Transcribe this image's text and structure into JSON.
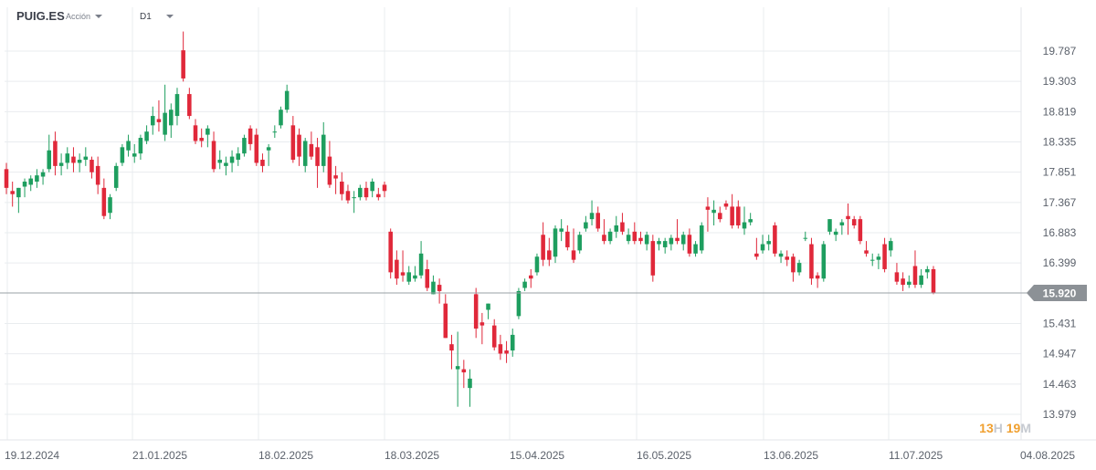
{
  "header": {
    "symbol": "PUIG.ES",
    "instrument_type": "Acción",
    "timeframe": "D1"
  },
  "countdown": {
    "hours": "13",
    "hours_unit": "H",
    "minutes": "19",
    "minutes_unit": "M"
  },
  "colors": {
    "up": "#1e9e5f",
    "down": "#e0283a",
    "price_line": "#9aa0a6",
    "price_tag": "#8c9196",
    "grid": "#e9ecef",
    "axis_text": "#5b616b"
  },
  "chart_data": {
    "type": "candlestick",
    "y_ticks": [
      "19.787",
      "19.303",
      "18.819",
      "18.335",
      "17.851",
      "17.367",
      "16.883",
      "16.399",
      "15.431",
      "14.947",
      "14.463",
      "13.979"
    ],
    "x_ticks": [
      "19.12.2024",
      "21.01.2025",
      "18.02.2025",
      "18.03.2025",
      "15.04.2025",
      "16.05.2025",
      "13.06.2025",
      "11.07.2025",
      "04.08.2025"
    ],
    "ylim": [
      13.9,
      20.4
    ],
    "current_price": 15.92,
    "current_price_label": "15.920",
    "ohlc": [
      [
        17.9,
        18.0,
        17.5,
        17.6
      ],
      [
        17.55,
        17.7,
        17.3,
        17.5
      ],
      [
        17.45,
        17.6,
        17.2,
        17.6
      ],
      [
        17.62,
        17.75,
        17.45,
        17.7
      ],
      [
        17.65,
        17.8,
        17.55,
        17.75
      ],
      [
        17.7,
        17.9,
        17.6,
        17.8
      ],
      [
        17.78,
        17.9,
        17.65,
        17.85
      ],
      [
        17.9,
        18.45,
        17.85,
        18.2
      ],
      [
        18.35,
        18.5,
        17.8,
        17.95
      ],
      [
        17.95,
        18.15,
        17.8,
        18.0
      ],
      [
        18.0,
        18.25,
        17.9,
        18.15
      ],
      [
        18.1,
        18.25,
        17.85,
        18.0
      ],
      [
        18.0,
        18.15,
        17.85,
        18.05
      ],
      [
        18.05,
        18.25,
        17.95,
        18.1
      ],
      [
        18.05,
        18.1,
        17.75,
        17.85
      ],
      [
        17.95,
        18.1,
        17.5,
        17.65
      ],
      [
        17.6,
        17.75,
        17.1,
        17.15
      ],
      [
        17.2,
        17.5,
        17.1,
        17.45
      ],
      [
        17.6,
        18.0,
        17.55,
        17.95
      ],
      [
        18.0,
        18.3,
        17.95,
        18.25
      ],
      [
        18.2,
        18.45,
        18.1,
        18.35
      ],
      [
        18.1,
        18.3,
        18.0,
        18.15
      ],
      [
        18.15,
        18.45,
        18.05,
        18.4
      ],
      [
        18.35,
        18.6,
        18.3,
        18.5
      ],
      [
        18.6,
        18.9,
        18.45,
        18.75
      ],
      [
        18.7,
        19.0,
        18.5,
        18.65
      ],
      [
        18.45,
        19.25,
        18.35,
        18.8
      ],
      [
        18.6,
        18.95,
        18.4,
        18.85
      ],
      [
        18.75,
        19.2,
        18.6,
        19.1
      ],
      [
        19.8,
        20.1,
        19.3,
        19.35
      ],
      [
        19.1,
        19.2,
        18.7,
        18.75
      ],
      [
        18.6,
        18.7,
        18.3,
        18.35
      ],
      [
        18.4,
        18.55,
        18.25,
        18.35
      ],
      [
        18.45,
        18.6,
        18.25,
        18.55
      ],
      [
        18.35,
        18.5,
        17.85,
        17.9
      ],
      [
        18.0,
        18.2,
        17.9,
        18.05
      ],
      [
        17.95,
        18.1,
        17.8,
        18.0
      ],
      [
        18.0,
        18.2,
        17.85,
        18.1
      ],
      [
        18.05,
        18.25,
        17.95,
        18.15
      ],
      [
        18.15,
        18.45,
        18.1,
        18.4
      ],
      [
        18.55,
        18.6,
        18.2,
        18.3
      ],
      [
        18.45,
        18.55,
        17.95,
        18.0
      ],
      [
        18.05,
        18.15,
        17.85,
        17.95
      ],
      [
        18.2,
        18.3,
        17.95,
        18.25
      ],
      [
        18.5,
        18.6,
        18.4,
        18.5
      ],
      [
        18.6,
        18.9,
        18.55,
        18.85
      ],
      [
        18.85,
        19.25,
        18.8,
        19.15
      ],
      [
        18.6,
        18.75,
        18.0,
        18.05
      ],
      [
        18.45,
        18.55,
        17.95,
        18.1
      ],
      [
        17.95,
        18.4,
        17.85,
        18.35
      ],
      [
        18.3,
        18.5,
        18.05,
        18.1
      ],
      [
        18.25,
        18.4,
        17.6,
        17.95
      ],
      [
        17.95,
        18.65,
        17.85,
        18.45
      ],
      [
        18.1,
        18.35,
        17.6,
        17.65
      ],
      [
        17.8,
        17.95,
        17.5,
        17.75
      ],
      [
        17.7,
        17.85,
        17.4,
        17.5
      ],
      [
        17.55,
        17.65,
        17.35,
        17.4
      ],
      [
        17.45,
        17.55,
        17.2,
        17.45
      ],
      [
        17.45,
        17.65,
        17.4,
        17.6
      ],
      [
        17.6,
        17.7,
        17.4,
        17.45
      ],
      [
        17.55,
        17.75,
        17.45,
        17.7
      ],
      [
        17.5,
        17.6,
        17.4,
        17.45
      ],
      [
        17.65,
        17.7,
        17.45,
        17.55
      ],
      [
        16.9,
        16.95,
        16.15,
        16.25
      ],
      [
        16.45,
        16.6,
        16.05,
        16.15
      ],
      [
        16.25,
        16.6,
        16.1,
        16.2
      ],
      [
        16.1,
        16.35,
        16.05,
        16.25
      ],
      [
        16.15,
        16.35,
        16.1,
        16.2
      ],
      [
        16.2,
        16.75,
        16.15,
        16.55
      ],
      [
        16.3,
        16.45,
        15.95,
        16.0
      ],
      [
        15.9,
        16.2,
        15.9,
        16.1
      ],
      [
        16.05,
        16.15,
        15.75,
        15.95
      ],
      [
        15.75,
        15.9,
        15.2,
        15.2
      ],
      [
        15.1,
        15.25,
        14.7,
        15.0
      ],
      [
        14.7,
        15.3,
        14.1,
        14.75
      ],
      [
        14.7,
        14.85,
        14.4,
        14.65
      ],
      [
        14.4,
        14.7,
        14.1,
        14.55
      ],
      [
        15.9,
        16.0,
        15.2,
        15.35
      ],
      [
        15.45,
        15.6,
        15.1,
        15.4
      ],
      [
        15.65,
        15.75,
        15.5,
        15.75
      ],
      [
        15.4,
        15.5,
        15.0,
        15.05
      ],
      [
        15.1,
        15.25,
        14.85,
        14.95
      ],
      [
        15.0,
        15.15,
        14.8,
        14.95
      ],
      [
        15.0,
        15.35,
        14.9,
        15.25
      ],
      [
        15.55,
        16.0,
        15.5,
        15.95
      ],
      [
        16.0,
        16.15,
        15.95,
        16.1
      ],
      [
        16.2,
        16.3,
        16.0,
        16.15
      ],
      [
        16.25,
        16.55,
        16.2,
        16.5
      ],
      [
        16.85,
        17.05,
        16.35,
        16.45
      ],
      [
        16.6,
        16.8,
        16.35,
        16.45
      ],
      [
        16.5,
        17.0,
        16.4,
        16.95
      ],
      [
        16.9,
        17.1,
        16.75,
        16.95
      ],
      [
        16.9,
        17.0,
        16.6,
        16.65
      ],
      [
        16.6,
        16.95,
        16.4,
        16.45
      ],
      [
        16.6,
        16.9,
        16.55,
        16.85
      ],
      [
        16.95,
        17.15,
        16.9,
        17.05
      ],
      [
        17.1,
        17.4,
        17.0,
        17.2
      ],
      [
        17.2,
        17.3,
        16.9,
        16.95
      ],
      [
        16.85,
        17.1,
        16.7,
        16.75
      ],
      [
        16.75,
        16.95,
        16.7,
        16.9
      ],
      [
        16.9,
        17.15,
        16.8,
        17.0
      ],
      [
        17.05,
        17.2,
        16.85,
        16.9
      ],
      [
        16.75,
        16.95,
        16.7,
        16.85
      ],
      [
        16.9,
        17.05,
        16.7,
        16.75
      ],
      [
        16.8,
        16.9,
        16.7,
        16.75
      ],
      [
        16.7,
        16.9,
        16.6,
        16.85
      ],
      [
        16.75,
        16.85,
        16.1,
        16.2
      ],
      [
        16.7,
        16.8,
        16.6,
        16.75
      ],
      [
        16.65,
        16.8,
        16.55,
        16.75
      ],
      [
        16.7,
        16.85,
        16.6,
        16.8
      ],
      [
        16.8,
        17.1,
        16.7,
        16.75
      ],
      [
        16.7,
        16.9,
        16.6,
        16.85
      ],
      [
        16.85,
        16.95,
        16.5,
        16.55
      ],
      [
        16.55,
        16.75,
        16.5,
        16.7
      ],
      [
        16.6,
        17.05,
        16.55,
        17.0
      ],
      [
        17.3,
        17.45,
        16.9,
        17.25
      ],
      [
        17.2,
        17.4,
        17.0,
        17.25
      ],
      [
        17.2,
        17.3,
        17.05,
        17.1
      ],
      [
        17.35,
        17.4,
        17.25,
        17.3
      ],
      [
        17.3,
        17.5,
        16.95,
        17.0
      ],
      [
        17.3,
        17.4,
        16.95,
        17.0
      ],
      [
        16.95,
        17.3,
        16.85,
        17.05
      ],
      [
        17.05,
        17.2,
        17.0,
        17.1
      ],
      [
        16.55,
        16.8,
        16.45,
        16.5
      ],
      [
        16.6,
        16.85,
        16.55,
        16.7
      ],
      [
        16.7,
        16.85,
        16.6,
        16.75
      ],
      [
        17.0,
        17.05,
        16.5,
        16.55
      ],
      [
        16.5,
        16.6,
        16.4,
        16.55
      ],
      [
        16.5,
        16.6,
        16.35,
        16.45
      ],
      [
        16.5,
        16.55,
        16.1,
        16.25
      ],
      [
        16.25,
        16.45,
        16.2,
        16.4
      ],
      [
        16.8,
        16.9,
        16.75,
        16.8
      ],
      [
        16.7,
        16.8,
        16.05,
        16.15
      ],
      [
        16.2,
        16.25,
        16.0,
        16.15
      ],
      [
        16.15,
        16.75,
        16.1,
        16.7
      ],
      [
        16.9,
        17.1,
        16.85,
        17.1
      ],
      [
        16.85,
        16.95,
        16.75,
        16.9
      ],
      [
        17.0,
        17.1,
        16.85,
        17.05
      ],
      [
        17.15,
        17.35,
        16.85,
        17.1
      ],
      [
        17.1,
        17.15,
        16.95,
        17.0
      ],
      [
        17.1,
        17.15,
        16.7,
        16.75
      ],
      [
        16.6,
        16.75,
        16.5,
        16.55
      ],
      [
        16.45,
        16.55,
        16.35,
        16.45
      ],
      [
        16.45,
        16.55,
        16.3,
        16.5
      ],
      [
        16.7,
        16.8,
        16.25,
        16.3
      ],
      [
        16.6,
        16.8,
        16.5,
        16.75
      ],
      [
        16.25,
        16.4,
        16.05,
        16.1
      ],
      [
        16.15,
        16.25,
        15.95,
        16.05
      ],
      [
        16.05,
        16.2,
        16.0,
        16.1
      ],
      [
        16.35,
        16.6,
        16.0,
        16.05
      ],
      [
        16.05,
        16.3,
        16.0,
        16.2
      ],
      [
        16.25,
        16.35,
        16.15,
        16.3
      ],
      [
        16.3,
        16.35,
        15.9,
        15.92
      ]
    ]
  }
}
